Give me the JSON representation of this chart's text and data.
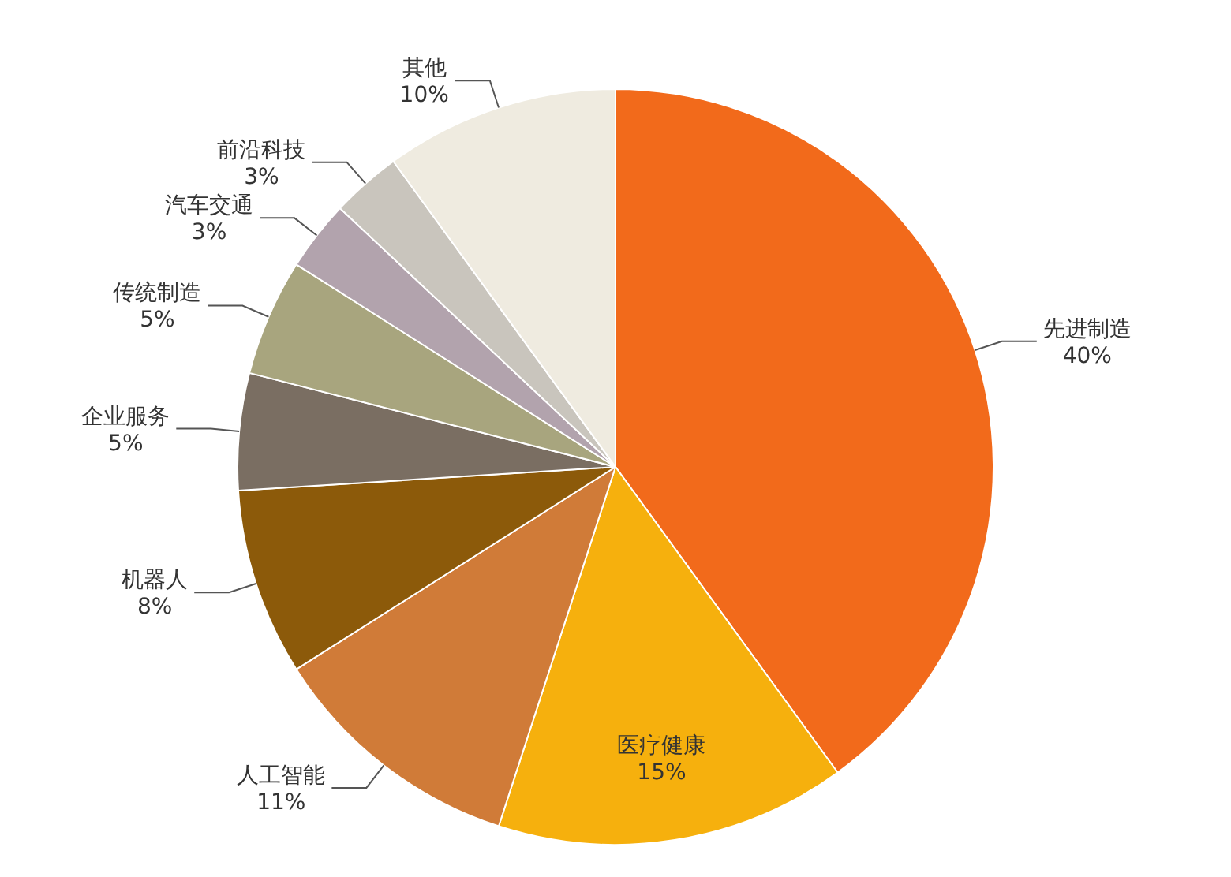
{
  "chart_data": {
    "type": "pie",
    "categories": [
      "先进制造",
      "医疗健康",
      "人工智能",
      "机器人",
      "企业服务",
      "传统制造",
      "汽车交通",
      "前沿科技",
      "其他"
    ],
    "values": [
      40,
      15,
      11,
      8,
      5,
      5,
      3,
      3,
      10
    ],
    "value_labels": [
      "40%",
      "15%",
      "11%",
      "8%",
      "5%",
      "5%",
      "3%",
      "3%",
      "10%"
    ],
    "colors": [
      "#f26a1b",
      "#f6b00d",
      "#d07b38",
      "#8c5a0a",
      "#7a6e62",
      "#a8a57e",
      "#b2a3ad",
      "#c9c5bd",
      "#efebe0"
    ],
    "legend": false
  }
}
